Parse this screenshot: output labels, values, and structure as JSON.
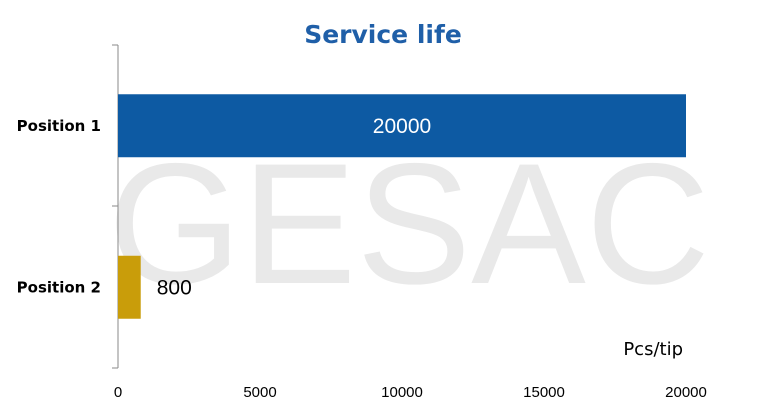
{
  "chart_data": {
    "type": "bar",
    "orientation": "horizontal",
    "title": "Service life",
    "categories": [
      "Position 1",
      "Position 2"
    ],
    "values": [
      20000,
      800
    ],
    "data_labels": [
      "20000",
      "800"
    ],
    "bar_colors": [
      "#0d5aa3",
      "#c99d0a"
    ],
    "data_label_colors": [
      "#ffffff",
      "#000000"
    ],
    "title_color": "#1f5fa8",
    "xlim": [
      0,
      20000
    ],
    "xticks": [
      "0",
      "5000",
      "10000",
      "15000",
      "20000"
    ],
    "unit_label": "Pcs/tip",
    "grid": false,
    "legend": "none"
  },
  "watermark": {
    "text": "GESAC"
  }
}
